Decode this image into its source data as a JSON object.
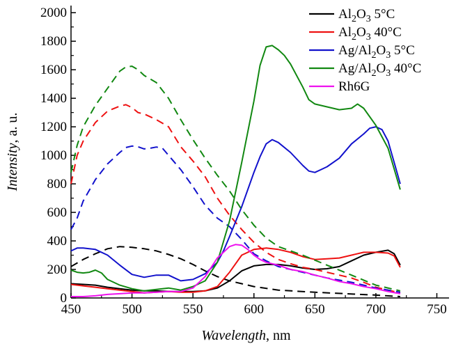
{
  "chart_data": {
    "type": "line",
    "xlabel": {
      "italic": "Wavelength",
      "unit": ", nm"
    },
    "ylabel": {
      "italic": "Intensity",
      "unit": ", a. u."
    },
    "xlim": [
      450,
      760
    ],
    "ylim": [
      0,
      2050
    ],
    "x_ticks": [
      450,
      500,
      550,
      600,
      650,
      700,
      750
    ],
    "y_ticks": [
      0,
      200,
      400,
      600,
      800,
      1000,
      1200,
      1400,
      1600,
      1800,
      2000
    ],
    "legend_position": "top-right",
    "series": [
      {
        "name": "Al2O3 5°C",
        "legend_parts": [
          [
            "Al",
            ""
          ],
          [
            "2",
            "sub"
          ],
          [
            "O",
            ""
          ],
          [
            "3",
            "sub"
          ],
          [
            " 5°C",
            ""
          ]
        ],
        "color": "#000000",
        "solid": {
          "x": [
            450,
            460,
            470,
            480,
            490,
            500,
            510,
            520,
            530,
            540,
            550,
            560,
            570,
            580,
            590,
            600,
            610,
            620,
            630,
            640,
            650,
            660,
            670,
            680,
            690,
            700,
            710,
            715,
            720
          ],
          "y": [
            100,
            95,
            90,
            75,
            65,
            55,
            50,
            50,
            45,
            45,
            45,
            50,
            70,
            120,
            190,
            225,
            235,
            235,
            225,
            210,
            200,
            205,
            220,
            260,
            300,
            320,
            335,
            310,
            230
          ]
        },
        "dashed": {
          "x": [
            450,
            460,
            470,
            480,
            490,
            500,
            510,
            520,
            530,
            540,
            550,
            560,
            570,
            580,
            590,
            600,
            620,
            650,
            700,
            720
          ],
          "y": [
            220,
            270,
            310,
            345,
            360,
            355,
            345,
            330,
            305,
            275,
            235,
            190,
            150,
            120,
            100,
            80,
            55,
            40,
            20,
            10
          ]
        }
      },
      {
        "name": "Al2O3 40°C",
        "legend_parts": [
          [
            "Al",
            ""
          ],
          [
            "2",
            "sub"
          ],
          [
            "O",
            ""
          ],
          [
            "3",
            "sub"
          ],
          [
            " 40°C",
            ""
          ]
        ],
        "color": "#ee1111",
        "solid": {
          "x": [
            450,
            460,
            470,
            480,
            490,
            500,
            510,
            520,
            530,
            540,
            550,
            560,
            570,
            580,
            590,
            600,
            610,
            620,
            630,
            640,
            650,
            660,
            670,
            680,
            690,
            700,
            710,
            715,
            720
          ],
          "y": [
            95,
            85,
            75,
            65,
            55,
            45,
            35,
            40,
            45,
            40,
            40,
            50,
            80,
            180,
            300,
            340,
            350,
            340,
            320,
            290,
            270,
            275,
            280,
            300,
            320,
            320,
            315,
            295,
            215
          ]
        },
        "dashed": {
          "x": [
            450,
            455,
            460,
            470,
            480,
            490,
            495,
            500,
            505,
            510,
            520,
            530,
            540,
            550,
            560,
            570,
            580,
            590,
            600,
            610,
            620,
            630,
            640,
            650,
            660,
            670,
            680,
            690,
            700,
            710,
            720
          ],
          "y": [
            800,
            1000,
            1100,
            1230,
            1310,
            1345,
            1355,
            1335,
            1300,
            1290,
            1250,
            1200,
            1060,
            960,
            850,
            700,
            580,
            480,
            390,
            320,
            270,
            240,
            215,
            200,
            180,
            160,
            140,
            110,
            75,
            55,
            35
          ]
        }
      },
      {
        "name": "Ag/Al2O3 5°C",
        "legend_parts": [
          [
            "Ag/Al",
            ""
          ],
          [
            "2",
            "sub"
          ],
          [
            "O",
            ""
          ],
          [
            "3",
            "sub"
          ],
          [
            " 5°C",
            ""
          ]
        ],
        "color": "#1111cc",
        "solid": {
          "x": [
            450,
            455,
            460,
            470,
            480,
            490,
            500,
            510,
            520,
            530,
            540,
            550,
            560,
            570,
            575,
            580,
            590,
            600,
            605,
            610,
            615,
            620,
            630,
            640,
            645,
            650,
            655,
            660,
            670,
            680,
            690,
            695,
            700,
            705,
            710,
            715,
            720
          ],
          "y": [
            330,
            350,
            350,
            340,
            300,
            230,
            165,
            145,
            160,
            160,
            120,
            130,
            170,
            250,
            330,
            430,
            640,
            880,
            990,
            1080,
            1110,
            1090,
            1020,
            930,
            890,
            880,
            900,
            920,
            980,
            1080,
            1150,
            1190,
            1200,
            1180,
            1100,
            950,
            800
          ]
        },
        "dashed": {
          "x": [
            450,
            455,
            460,
            470,
            480,
            490,
            495,
            500,
            505,
            510,
            515,
            520,
            525,
            530,
            540,
            550,
            560,
            570,
            580,
            590,
            600,
            610,
            620,
            640,
            660,
            680,
            700,
            720
          ],
          "y": [
            480,
            560,
            680,
            830,
            940,
            1020,
            1055,
            1065,
            1060,
            1045,
            1050,
            1058,
            1050,
            1000,
            900,
            780,
            650,
            560,
            500,
            410,
            310,
            260,
            220,
            180,
            140,
            110,
            70,
            40
          ]
        }
      },
      {
        "name": "Ag/Al2O3 40°C",
        "legend_parts": [
          [
            "Ag/Al",
            ""
          ],
          [
            "2",
            "sub"
          ],
          [
            "O",
            ""
          ],
          [
            "3",
            "sub"
          ],
          [
            " 40°C",
            ""
          ]
        ],
        "color": "#118811",
        "solid": {
          "x": [
            450,
            455,
            460,
            465,
            470,
            475,
            480,
            490,
            500,
            510,
            520,
            530,
            540,
            550,
            560,
            570,
            580,
            590,
            600,
            605,
            610,
            615,
            620,
            625,
            630,
            640,
            645,
            650,
            660,
            670,
            680,
            685,
            690,
            700,
            710,
            720
          ],
          "y": [
            195,
            180,
            175,
            180,
            195,
            175,
            130,
            90,
            65,
            50,
            60,
            70,
            55,
            80,
            120,
            250,
            540,
            950,
            1380,
            1630,
            1760,
            1770,
            1740,
            1700,
            1640,
            1480,
            1390,
            1360,
            1340,
            1320,
            1330,
            1360,
            1330,
            1210,
            1050,
            760
          ]
        },
        "dashed": {
          "x": [
            450,
            455,
            460,
            470,
            480,
            490,
            495,
            500,
            505,
            510,
            520,
            530,
            540,
            550,
            560,
            570,
            580,
            590,
            600,
            610,
            620,
            640,
            660,
            680,
            700,
            720
          ],
          "y": [
            880,
            1070,
            1200,
            1350,
            1470,
            1590,
            1620,
            1625,
            1600,
            1560,
            1510,
            1400,
            1250,
            1110,
            980,
            860,
            750,
            620,
            510,
            420,
            360,
            300,
            230,
            160,
            90,
            50
          ]
        }
      },
      {
        "name": "Rh6G",
        "legend_parts": [
          [
            "Rh6G",
            ""
          ]
        ],
        "color": "#ee11ee",
        "solid": {
          "x": [
            450,
            460,
            470,
            480,
            490,
            500,
            510,
            520,
            530,
            540,
            550,
            560,
            570,
            575,
            580,
            585,
            590,
            595,
            600,
            605,
            610,
            620,
            630,
            640,
            650,
            660,
            670,
            680,
            690,
            700,
            710,
            720
          ],
          "y": [
            10,
            10,
            15,
            25,
            30,
            35,
            35,
            40,
            45,
            45,
            70,
            150,
            280,
            320,
            360,
            375,
            370,
            340,
            300,
            270,
            250,
            230,
            200,
            185,
            160,
            140,
            115,
            100,
            80,
            65,
            45,
            30
          ]
        }
      }
    ]
  }
}
